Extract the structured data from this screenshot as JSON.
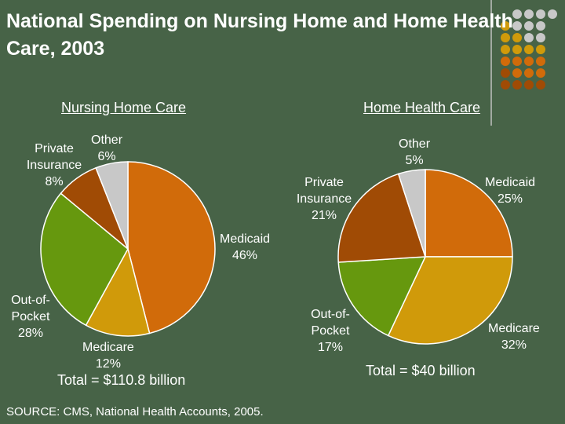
{
  "title": "National Spending on Nursing Home and Home Health Care, 2003",
  "source": "SOURCE: CMS, National Health Accounts, 2005.",
  "colors": {
    "medicaid": "#d16b0a",
    "medicare": "#d09a0a",
    "out_of_pocket": "#66980e",
    "private_insurance": "#a04b05",
    "other": "#c8c8c8"
  },
  "chart_data": [
    {
      "type": "pie",
      "title": "Nursing Home Care",
      "total": "Total = $110.8 billion",
      "slices": [
        {
          "name": "Medicaid",
          "value": 46,
          "label_name": "Medicaid",
          "label_value": "46%"
        },
        {
          "name": "Medicare",
          "value": 12,
          "label_name": "Medicare",
          "label_value": "12%"
        },
        {
          "name": "Out-of-Pocket",
          "value": 28,
          "label_name": "Out-of-Pocket",
          "label_value": "28%"
        },
        {
          "name": "Private Insurance",
          "value": 8,
          "label_name": "Private Insurance",
          "label_value": "8%"
        },
        {
          "name": "Other",
          "value": 6,
          "label_name": "Other",
          "label_value": "6%"
        }
      ]
    },
    {
      "type": "pie",
      "title": "Home Health Care",
      "total": "Total = $40 billion",
      "slices": [
        {
          "name": "Medicaid",
          "value": 25,
          "label_name": "Medicaid",
          "label_value": "25%"
        },
        {
          "name": "Medicare",
          "value": 32,
          "label_name": "Medicare",
          "label_value": "32%"
        },
        {
          "name": "Out-of-Pocket",
          "value": 17,
          "label_name": "Out-of-Pocket",
          "label_value": "17%"
        },
        {
          "name": "Private Insurance",
          "value": 21,
          "label_name": "Private Insurance",
          "label_value": "21%"
        },
        {
          "name": "Other",
          "value": 5,
          "label_name": "Other",
          "label_value": "5%"
        }
      ]
    }
  ]
}
